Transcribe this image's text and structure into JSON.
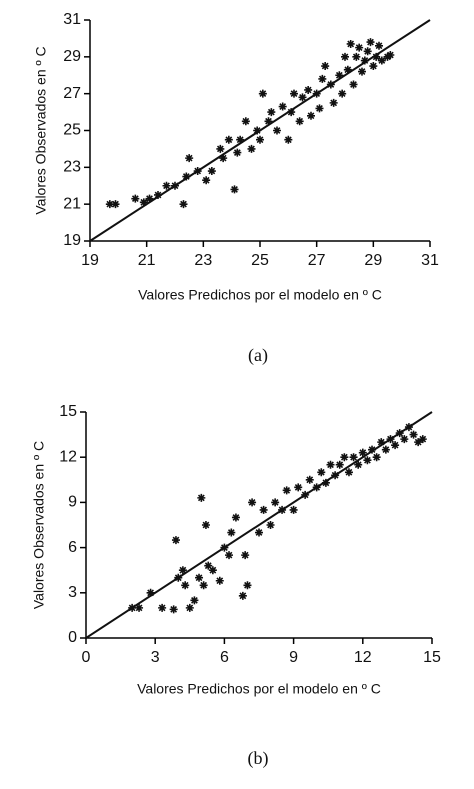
{
  "chart_data": [
    {
      "type": "scatter",
      "x_label": "Valores Predichos por el modelo en º C",
      "y_label": "Valores Observados en º C",
      "caption": "(a)",
      "color": "#111111",
      "x": [
        19.7,
        19.9,
        20.6,
        20.9,
        21.1,
        21.4,
        21.7,
        22,
        22.3,
        22.4,
        22.5,
        22.8,
        23.1,
        23.3,
        23.6,
        23.7,
        23.9,
        24.1,
        24.2,
        24.3,
        24.5,
        24.7,
        24.9,
        25,
        25.1,
        25.3,
        25.4,
        25.6,
        25.8,
        26,
        26.1,
        26.2,
        26.4,
        26.5,
        26.7,
        26.8,
        27,
        27.1,
        27.2,
        27.3,
        27.5,
        27.6,
        27.8,
        27.9,
        28,
        28.1,
        28.2,
        28.3,
        28.4,
        28.5,
        28.6,
        28.7,
        28.8,
        28.9,
        29,
        29.1,
        29.2,
        29.3,
        29.5,
        29.6
      ],
      "values": [
        21,
        21,
        21.3,
        21.1,
        21.3,
        21.5,
        22,
        22,
        21,
        22.5,
        23.5,
        22.8,
        22.3,
        22.8,
        24,
        23.5,
        24.5,
        21.8,
        23.8,
        24.5,
        25.5,
        24,
        25,
        24.5,
        27,
        25.5,
        26,
        25,
        26.3,
        24.5,
        26,
        27,
        25.5,
        26.8,
        27.2,
        25.8,
        27,
        26.2,
        27.8,
        28.5,
        27.5,
        26.5,
        28,
        27,
        29,
        28.3,
        29.7,
        27.5,
        29,
        29.5,
        28.2,
        28.8,
        29.3,
        29.8,
        28.5,
        29,
        29.6,
        28.8,
        29,
        29.1
      ],
      "line": {
        "x": [
          19,
          31
        ],
        "values": [
          19,
          31
        ]
      },
      "xlim": [
        19,
        31
      ],
      "ylim": [
        19,
        31
      ],
      "xticks": [
        19,
        21,
        23,
        25,
        27,
        29,
        31
      ],
      "yticks": [
        19,
        21,
        23,
        25,
        27,
        29,
        31
      ]
    },
    {
      "type": "scatter",
      "x_label": "Valores Predichos por el modelo en º C",
      "y_label": "Valores Observados en º C",
      "caption": "(b)",
      "color": "#111111",
      "x": [
        2,
        2.3,
        2.8,
        3.3,
        3.9,
        4,
        4.2,
        4.3,
        4.5,
        4.7,
        4.9,
        5,
        5.1,
        5.2,
        5.5,
        5.8,
        6,
        6.2,
        6.3,
        6.5,
        6.8,
        6.9,
        7,
        7.2,
        7.5,
        7.7,
        8,
        8.2,
        8.5,
        8.7,
        9,
        9.2,
        9.5,
        9.7,
        10,
        10.2,
        10.4,
        10.6,
        10.8,
        11,
        11.2,
        11.4,
        11.6,
        11.8,
        12,
        12.2,
        12.4,
        12.6,
        12.8,
        13,
        13.2,
        13.4,
        13.6,
        13.8,
        14,
        14.2,
        14.4,
        14.6,
        3.8,
        5.3
      ],
      "values": [
        2,
        2,
        3,
        2,
        6.5,
        4,
        4.5,
        3.5,
        2,
        2.5,
        4,
        9.3,
        3.5,
        7.5,
        4.5,
        3.8,
        6,
        5.5,
        7,
        8,
        2.8,
        5.5,
        3.5,
        9,
        7,
        8.5,
        7.5,
        9,
        8.5,
        9.8,
        8.5,
        10,
        9.5,
        10.5,
        10,
        11,
        10.3,
        11.5,
        10.8,
        11.5,
        12,
        11,
        12,
        11.5,
        12.3,
        11.8,
        12.5,
        12,
        13,
        12.5,
        13.2,
        12.8,
        13.6,
        13.2,
        14,
        13.5,
        13,
        13.2,
        1.9,
        4.8
      ],
      "line": {
        "x": [
          0,
          15
        ],
        "values": [
          0,
          15
        ]
      },
      "xlim": [
        0,
        15
      ],
      "ylim": [
        0,
        15
      ],
      "xticks": [
        0,
        3,
        6,
        9,
        12,
        15
      ],
      "yticks": [
        0,
        3,
        6,
        9,
        12,
        15
      ]
    }
  ]
}
